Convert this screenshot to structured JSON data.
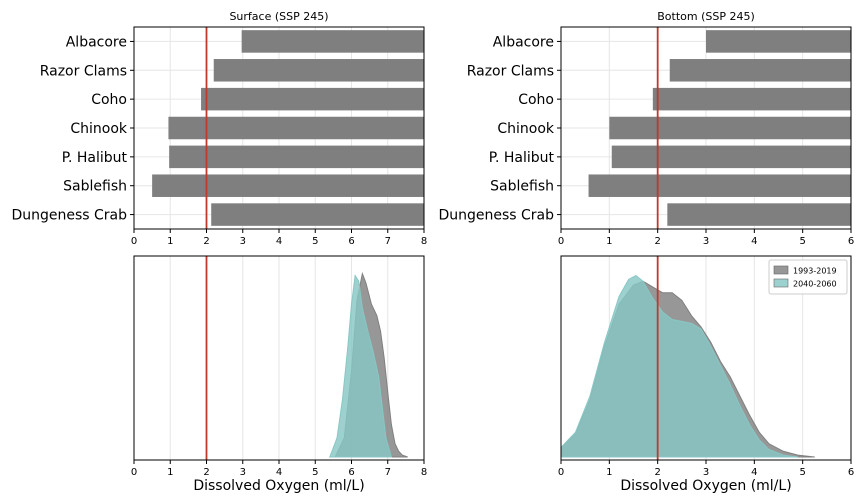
{
  "chart_data": [
    {
      "type": "bar",
      "orientation": "horizontal",
      "title": "Surface (SSP 245)",
      "xlabel": "",
      "ylabel": "",
      "xlim": [
        0,
        8
      ],
      "xticks": [
        "0",
        "1",
        "2",
        "3",
        "4",
        "5",
        "6",
        "7",
        "8"
      ],
      "categories": [
        "Albacore",
        "Razor Clams",
        "Coho",
        "Chinook",
        "P. Halibut",
        "Sablefish",
        "Dungeness Crab"
      ],
      "bar_start": [
        2.97,
        2.2,
        1.85,
        0.95,
        0.97,
        0.5,
        2.13
      ],
      "bar_end": [
        8,
        8,
        8,
        8,
        8,
        8,
        8
      ],
      "bar_color": "#7f7f7f",
      "reference_line_x": 2,
      "reference_line_color": "#c0392b",
      "grid": true
    },
    {
      "type": "bar",
      "orientation": "horizontal",
      "title": "Bottom (SSP 245)",
      "xlabel": "",
      "ylabel": "",
      "xlim": [
        0,
        6
      ],
      "xticks": [
        "0",
        "1",
        "2",
        "3",
        "4",
        "5",
        "6"
      ],
      "categories": [
        "Albacore",
        "Razor Clams",
        "Coho",
        "Chinook",
        "P. Halibut",
        "Sablefish",
        "Dungeness Crab"
      ],
      "bar_start": [
        3.0,
        2.25,
        1.9,
        1.0,
        1.05,
        0.57,
        2.2
      ],
      "bar_end": [
        6,
        6,
        6,
        6,
        6,
        6,
        6
      ],
      "bar_color": "#7f7f7f",
      "reference_line_x": 2,
      "reference_line_color": "#c0392b",
      "grid": true
    },
    {
      "type": "area",
      "title": "",
      "xlabel": "Dissolved Oxygen (ml/L)",
      "ylabel": "",
      "xlim": [
        0,
        8
      ],
      "xticks": [
        "0",
        "1",
        "2",
        "3",
        "4",
        "5",
        "6",
        "7",
        "8"
      ],
      "reference_line_x": 2,
      "reference_line_color": "#c0392b",
      "grid": true,
      "series": [
        {
          "color": "#808080",
          "x": [
            5.55,
            5.8,
            6.0,
            6.15,
            6.3,
            6.4,
            6.55,
            6.7,
            6.8,
            6.9,
            7.0,
            7.1,
            7.2,
            7.3,
            7.4,
            7.55
          ],
          "y": [
            0,
            0.1,
            0.45,
            0.82,
            0.96,
            0.91,
            0.8,
            0.74,
            0.66,
            0.52,
            0.34,
            0.17,
            0.07,
            0.03,
            0.01,
            0
          ]
        },
        {
          "color": "#88c7c4",
          "x": [
            5.4,
            5.6,
            5.75,
            5.9,
            6.0,
            6.1,
            6.2,
            6.3,
            6.45,
            6.6,
            6.75,
            6.85,
            6.95,
            7.1
          ],
          "y": [
            0,
            0.1,
            0.3,
            0.58,
            0.8,
            0.95,
            0.92,
            0.78,
            0.66,
            0.55,
            0.42,
            0.26,
            0.1,
            0
          ]
        }
      ]
    },
    {
      "type": "area",
      "title": "",
      "xlabel": "Dissolved Oxygen (ml/L)",
      "ylabel": "",
      "xlim": [
        0,
        6
      ],
      "xticks": [
        "0",
        "1",
        "2",
        "3",
        "4",
        "5",
        "6"
      ],
      "reference_line_x": 2,
      "reference_line_color": "#c0392b",
      "grid": true,
      "legend_position": "top-right",
      "series": [
        {
          "name": "1993-2019",
          "color": "#808080",
          "x": [
            0,
            0.3,
            0.6,
            0.9,
            1.2,
            1.5,
            1.7,
            1.9,
            2.1,
            2.3,
            2.5,
            2.7,
            2.9,
            3.1,
            3.3,
            3.5,
            3.7,
            3.9,
            4.1,
            4.3,
            4.6,
            4.9,
            5.25
          ],
          "y": [
            0.05,
            0.12,
            0.3,
            0.58,
            0.8,
            0.9,
            0.92,
            0.89,
            0.86,
            0.86,
            0.82,
            0.74,
            0.68,
            0.6,
            0.5,
            0.42,
            0.32,
            0.22,
            0.13,
            0.07,
            0.03,
            0.01,
            0
          ]
        },
        {
          "name": "2040-2060",
          "color": "#88c7c4",
          "x": [
            0,
            0.3,
            0.6,
            0.9,
            1.2,
            1.4,
            1.55,
            1.7,
            1.9,
            2.1,
            2.3,
            2.5,
            2.7,
            2.9,
            3.1,
            3.3,
            3.5,
            3.7,
            3.9,
            4.1,
            4.3,
            4.6,
            4.9
          ],
          "y": [
            0.05,
            0.13,
            0.32,
            0.6,
            0.84,
            0.93,
            0.95,
            0.92,
            0.83,
            0.76,
            0.72,
            0.71,
            0.7,
            0.67,
            0.58,
            0.48,
            0.38,
            0.27,
            0.17,
            0.09,
            0.04,
            0.01,
            0
          ]
        }
      ]
    }
  ]
}
